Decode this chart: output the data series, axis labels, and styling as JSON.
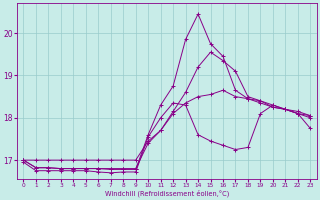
{
  "xlabel": "Windchill (Refroidissement éolien,°C)",
  "ylabel": "",
  "bg_color": "#c8ece8",
  "line_color": "#880088",
  "grid_color": "#99cccc",
  "x_ticks": [
    0,
    1,
    2,
    3,
    4,
    5,
    6,
    7,
    8,
    9,
    10,
    11,
    12,
    13,
    14,
    15,
    16,
    17,
    18,
    19,
    20,
    21,
    22,
    23
  ],
  "y_ticks": [
    17,
    18,
    19,
    20
  ],
  "xlim": [
    -0.5,
    23.5
  ],
  "ylim": [
    16.55,
    20.7
  ],
  "series": [
    [
      16.95,
      16.75,
      16.75,
      16.75,
      16.75,
      16.75,
      16.72,
      16.7,
      16.72,
      16.72,
      17.55,
      18.0,
      18.35,
      18.3,
      17.6,
      17.45,
      17.35,
      17.25,
      17.3,
      18.1,
      18.3,
      18.2,
      18.1,
      18.05
    ],
    [
      17.0,
      16.82,
      16.82,
      16.8,
      16.8,
      16.8,
      16.8,
      16.8,
      16.8,
      16.8,
      17.4,
      17.7,
      18.15,
      18.6,
      19.2,
      19.55,
      19.35,
      19.1,
      18.5,
      18.4,
      18.25,
      18.2,
      18.1,
      17.75
    ],
    [
      17.0,
      17.0,
      17.0,
      17.0,
      17.0,
      17.0,
      17.0,
      17.0,
      17.0,
      17.0,
      17.45,
      17.7,
      18.1,
      18.35,
      18.5,
      18.55,
      18.65,
      18.5,
      18.45,
      18.4,
      18.3,
      18.2,
      18.1,
      18.0
    ],
    [
      17.0,
      16.82,
      16.82,
      16.8,
      16.8,
      16.8,
      16.8,
      16.78,
      16.78,
      16.78,
      17.6,
      18.3,
      18.75,
      19.85,
      20.45,
      19.75,
      19.45,
      18.65,
      18.45,
      18.35,
      18.25,
      18.2,
      18.15,
      18.05
    ]
  ]
}
